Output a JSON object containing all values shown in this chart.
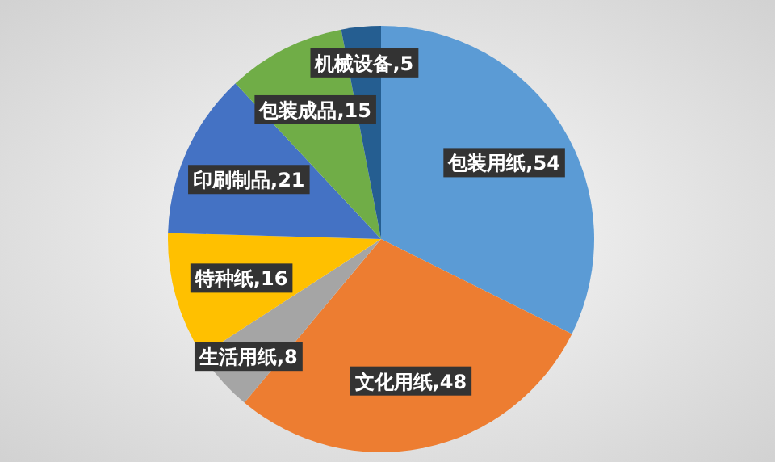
{
  "chart_data": {
    "type": "pie",
    "categories": [
      "包装用纸",
      "文化用纸",
      "生活用纸",
      "特种纸",
      "印刷制品",
      "包装成品",
      "机械设备"
    ],
    "values": [
      54,
      48,
      8,
      16,
      21,
      15,
      5
    ],
    "value_labels": [
      ",54",
      ",48",
      ",8",
      ",16",
      ",21",
      ",15",
      ",5"
    ],
    "colors": [
      "#5b9bd5",
      "#ed7d31",
      "#a5a5a5",
      "#ffc000",
      "#4472c4",
      "#70ad47",
      "#255e91"
    ],
    "legend": false
  }
}
